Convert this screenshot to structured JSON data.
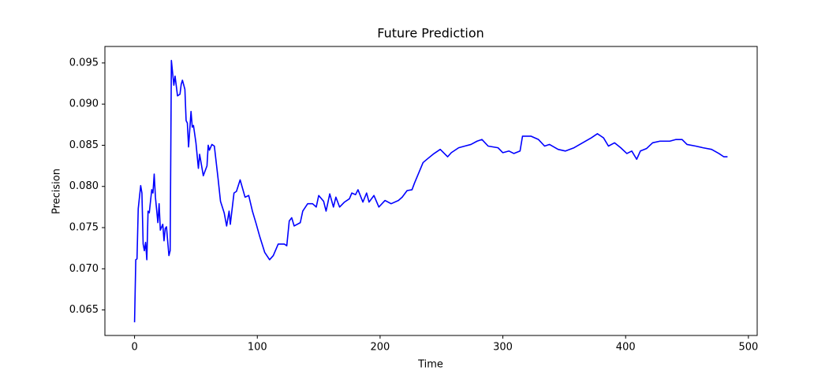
{
  "chart_data": {
    "type": "line",
    "title": "Future Prediction",
    "x_label": "Time",
    "y_label": "Precision",
    "x": [
      0,
      1,
      2,
      3,
      5,
      6,
      7,
      8,
      9,
      10,
      11,
      12,
      14,
      15,
      16,
      17,
      19,
      20,
      21,
      23,
      24,
      25,
      26,
      28,
      29,
      30,
      32,
      33,
      35,
      37,
      38,
      39,
      41,
      42,
      43,
      44,
      46,
      47,
      48,
      50,
      52,
      53,
      56,
      59,
      60,
      61,
      63,
      65,
      68,
      70,
      73,
      75,
      77,
      78,
      81,
      83,
      86,
      90,
      93,
      96,
      99,
      102,
      106,
      110,
      113,
      117,
      122,
      124,
      126,
      128,
      130,
      135,
      137,
      141,
      145,
      148,
      150,
      154,
      156,
      159,
      162,
      164,
      167,
      171,
      175,
      177,
      180,
      182,
      186,
      189,
      191,
      195,
      199,
      204,
      209,
      215,
      218,
      222,
      226,
      228,
      235,
      239,
      244,
      249,
      255,
      258,
      264,
      269,
      274,
      279,
      283,
      288,
      296,
      300,
      305,
      309,
      314,
      316,
      323,
      329,
      334,
      338,
      345,
      351,
      358,
      365,
      372,
      377,
      382,
      386,
      391,
      396,
      401,
      405,
      409,
      412,
      417,
      422,
      428,
      436,
      441,
      446,
      450,
      457,
      463,
      470,
      476,
      480,
      483
    ],
    "series": [
      {
        "name": "Precision",
        "color": "#0000ff",
        "values": [
          0.0635,
          0.0711,
          0.0712,
          0.0773,
          0.0801,
          0.0792,
          0.073,
          0.0722,
          0.0732,
          0.0711,
          0.077,
          0.0768,
          0.0796,
          0.0792,
          0.0815,
          0.0787,
          0.0756,
          0.0779,
          0.0747,
          0.0754,
          0.0734,
          0.0749,
          0.0751,
          0.0716,
          0.0722,
          0.0953,
          0.0923,
          0.0934,
          0.091,
          0.0912,
          0.0924,
          0.0929,
          0.0918,
          0.088,
          0.0877,
          0.0848,
          0.0891,
          0.0872,
          0.0874,
          0.0853,
          0.0822,
          0.0839,
          0.0813,
          0.0825,
          0.085,
          0.0844,
          0.0851,
          0.0849,
          0.081,
          0.0782,
          0.0768,
          0.0752,
          0.077,
          0.0754,
          0.0792,
          0.0794,
          0.0808,
          0.0787,
          0.0789,
          0.077,
          0.0755,
          0.0739,
          0.072,
          0.0711,
          0.0716,
          0.073,
          0.073,
          0.0728,
          0.0758,
          0.0762,
          0.0752,
          0.0756,
          0.077,
          0.0779,
          0.0779,
          0.0775,
          0.0789,
          0.0782,
          0.077,
          0.0791,
          0.0775,
          0.0787,
          0.0775,
          0.0781,
          0.0785,
          0.0792,
          0.079,
          0.0796,
          0.0781,
          0.0792,
          0.0781,
          0.0789,
          0.0775,
          0.0783,
          0.0779,
          0.0783,
          0.0787,
          0.0795,
          0.0796,
          0.0804,
          0.0829,
          0.0834,
          0.084,
          0.0845,
          0.0836,
          0.0841,
          0.0847,
          0.0849,
          0.0851,
          0.0855,
          0.0857,
          0.0849,
          0.0847,
          0.0841,
          0.0843,
          0.084,
          0.0843,
          0.0861,
          0.0861,
          0.0857,
          0.0849,
          0.0851,
          0.0845,
          0.0843,
          0.0847,
          0.0853,
          0.0859,
          0.0864,
          0.0859,
          0.0849,
          0.0853,
          0.0847,
          0.084,
          0.0843,
          0.0833,
          0.0843,
          0.0846,
          0.0853,
          0.0855,
          0.0855,
          0.0857,
          0.0857,
          0.0851,
          0.0849,
          0.0847,
          0.0845,
          0.084,
          0.0836,
          0.0836
        ]
      }
    ],
    "xlim": [
      -24.15,
      507.15
    ],
    "xticks": [
      0,
      100,
      200,
      300,
      400,
      500
    ],
    "ylim": [
      0.0619,
      0.097
    ],
    "yticks": [
      0.065,
      {
        "value": 0.07,
        "label": "0.070"
      },
      0.075,
      {
        "value": 0.08,
        "label": "0.080"
      },
      0.085,
      {
        "value": 0.09,
        "label": "0.090"
      },
      0.095
    ],
    "grid": false
  }
}
